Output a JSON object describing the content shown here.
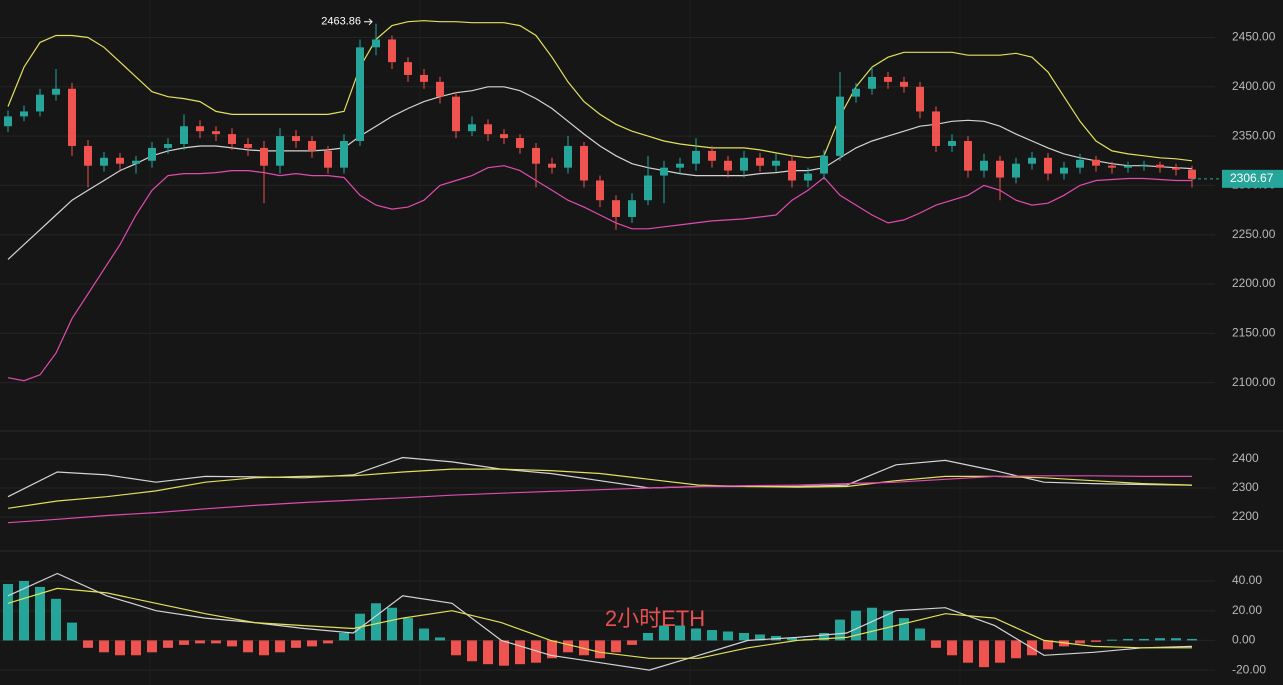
{
  "chart_data": [
    {
      "type": "candlestick",
      "up_color": "#26a69a",
      "down_color": "#ef5350",
      "open": [
        2360,
        2370,
        2375,
        2392,
        2398,
        2340,
        2320,
        2328,
        2322,
        2325,
        2338,
        2342,
        2360,
        2355,
        2352,
        2342,
        2338,
        2320,
        2350,
        2345,
        2335,
        2318,
        2345,
        2440,
        2448,
        2425,
        2412,
        2405,
        2390,
        2355,
        2362,
        2352,
        2348,
        2338,
        2322,
        2318,
        2340,
        2305,
        2285,
        2268,
        2285,
        2310,
        2318,
        2322,
        2335,
        2325,
        2315,
        2328,
        2320,
        2325,
        2305,
        2312,
        2330,
        2390,
        2398,
        2410,
        2405,
        2400,
        2375,
        2340,
        2345,
        2315,
        2325,
        2308,
        2322,
        2328,
        2312,
        2318,
        2326,
        2320,
        2318,
        2320,
        2321,
        2318,
        2316
      ],
      "high": [
        2376,
        2381,
        2398,
        2418,
        2404,
        2346,
        2334,
        2333,
        2330,
        2344,
        2348,
        2372,
        2366,
        2360,
        2358,
        2348,
        2345,
        2358,
        2356,
        2350,
        2340,
        2352,
        2448,
        2463.86,
        2452,
        2430,
        2418,
        2410,
        2395,
        2370,
        2367,
        2357,
        2352,
        2343,
        2328,
        2350,
        2344,
        2310,
        2290,
        2292,
        2330,
        2325,
        2328,
        2348,
        2340,
        2330,
        2335,
        2333,
        2332,
        2330,
        2318,
        2336,
        2415,
        2404,
        2420,
        2415,
        2410,
        2405,
        2380,
        2352,
        2350,
        2332,
        2330,
        2328,
        2334,
        2333,
        2324,
        2332,
        2330,
        2324,
        2324,
        2325,
        2324,
        2322,
        2320
      ],
      "low": [
        2354,
        2365,
        2370,
        2386,
        2330,
        2298,
        2314,
        2316,
        2312,
        2318,
        2332,
        2336,
        2348,
        2345,
        2336,
        2330,
        2282,
        2312,
        2338,
        2328,
        2312,
        2312,
        2340,
        2432,
        2418,
        2405,
        2398,
        2383,
        2348,
        2350,
        2345,
        2342,
        2332,
        2298,
        2312,
        2312,
        2298,
        2278,
        2255,
        2262,
        2280,
        2282,
        2312,
        2315,
        2318,
        2308,
        2308,
        2314,
        2314,
        2298,
        2298,
        2306,
        2325,
        2384,
        2392,
        2398,
        2394,
        2368,
        2334,
        2334,
        2308,
        2308,
        2285,
        2302,
        2316,
        2305,
        2306,
        2312,
        2314,
        2312,
        2313,
        2315,
        2313,
        2310,
        2298
      ],
      "close": [
        2370,
        2375,
        2392,
        2398,
        2340,
        2320,
        2328,
        2322,
        2325,
        2338,
        2342,
        2360,
        2355,
        2352,
        2342,
        2338,
        2320,
        2350,
        2345,
        2335,
        2318,
        2345,
        2440,
        2448,
        2425,
        2412,
        2405,
        2390,
        2355,
        2362,
        2352,
        2348,
        2338,
        2322,
        2318,
        2340,
        2305,
        2285,
        2268,
        2285,
        2310,
        2318,
        2322,
        2335,
        2325,
        2315,
        2328,
        2320,
        2325,
        2305,
        2312,
        2330,
        2390,
        2398,
        2410,
        2405,
        2400,
        2375,
        2340,
        2345,
        2315,
        2325,
        2308,
        2322,
        2328,
        2312,
        2318,
        2326,
        2320,
        2318,
        2320,
        2321,
        2318,
        2316,
        2306.67
      ],
      "series": [
        {
          "color": "#e3e05a",
          "values": [
            2380,
            2420,
            2445,
            2452,
            2452,
            2450,
            2440,
            2425,
            2410,
            2395,
            2390,
            2388,
            2385,
            2375,
            2372,
            2372,
            2372,
            2372,
            2372,
            2372,
            2372,
            2375,
            2420,
            2448,
            2462,
            2466,
            2467,
            2466,
            2466,
            2465,
            2465,
            2465,
            2462,
            2452,
            2430,
            2405,
            2385,
            2372,
            2362,
            2355,
            2350,
            2345,
            2342,
            2340,
            2338,
            2338,
            2338,
            2336,
            2333,
            2330,
            2328,
            2330,
            2370,
            2400,
            2420,
            2430,
            2435,
            2435,
            2435,
            2435,
            2432,
            2432,
            2432,
            2434,
            2430,
            2415,
            2390,
            2365,
            2345,
            2335,
            2332,
            2330,
            2328,
            2327,
            2325
          ]
        },
        {
          "color": "#d4d4d4",
          "values": [
            2225,
            2240,
            2255,
            2270,
            2285,
            2295,
            2305,
            2315,
            2322,
            2330,
            2335,
            2338,
            2340,
            2340,
            2338,
            2336,
            2335,
            2335,
            2335,
            2335,
            2336,
            2338,
            2350,
            2360,
            2370,
            2378,
            2385,
            2390,
            2394,
            2396,
            2400,
            2400,
            2396,
            2388,
            2378,
            2365,
            2352,
            2340,
            2330,
            2322,
            2318,
            2315,
            2312,
            2310,
            2310,
            2310,
            2310,
            2312,
            2313,
            2315,
            2315,
            2318,
            2328,
            2338,
            2345,
            2350,
            2355,
            2360,
            2362,
            2365,
            2366,
            2365,
            2360,
            2352,
            2345,
            2338,
            2332,
            2328,
            2325,
            2322,
            2320,
            2320,
            2319,
            2318,
            2317
          ]
        },
        {
          "color": "#e04bb0",
          "values": [
            2105,
            2102,
            2108,
            2130,
            2165,
            2190,
            2215,
            2240,
            2270,
            2295,
            2310,
            2312,
            2312,
            2313,
            2315,
            2315,
            2313,
            2310,
            2312,
            2310,
            2310,
            2308,
            2290,
            2280,
            2276,
            2278,
            2285,
            2300,
            2305,
            2310,
            2318,
            2320,
            2315,
            2305,
            2295,
            2285,
            2278,
            2270,
            2262,
            2256,
            2256,
            2258,
            2260,
            2262,
            2264,
            2265,
            2266,
            2268,
            2270,
            2285,
            2295,
            2308,
            2290,
            2280,
            2270,
            2262,
            2265,
            2272,
            2280,
            2285,
            2290,
            2300,
            2295,
            2285,
            2280,
            2282,
            2290,
            2300,
            2305,
            2306,
            2307,
            2307,
            2306,
            2305,
            2305
          ]
        }
      ],
      "ylim": [
        2052,
        2488
      ],
      "yticks": [
        {
          "value": 2450,
          "label": "2450.00"
        },
        {
          "value": 2400,
          "label": "2400.00"
        },
        {
          "value": 2350,
          "label": "2350.00"
        },
        {
          "value": 2300,
          "label": "2300.00"
        },
        {
          "value": 2250,
          "label": "2250.00"
        },
        {
          "value": 2200,
          "label": "2200.00"
        },
        {
          "value": 2150,
          "label": "2150.00"
        },
        {
          "value": 2100,
          "label": "2100.00"
        }
      ],
      "grid": true
    },
    {
      "type": "line",
      "series": [
        {
          "color": "#d4d4d4",
          "values": [
            2270,
            2355,
            2345,
            2320,
            2340,
            2338,
            2335,
            2345,
            2405,
            2390,
            2365,
            2350,
            2325,
            2300,
            2305,
            2305,
            2305,
            2310,
            2380,
            2395,
            2360,
            2320,
            2315,
            2312,
            2310
          ]
        },
        {
          "color": "#e3e05a",
          "values": [
            2230,
            2255,
            2270,
            2290,
            2320,
            2335,
            2340,
            2342,
            2355,
            2365,
            2365,
            2360,
            2350,
            2330,
            2310,
            2305,
            2303,
            2305,
            2325,
            2340,
            2340,
            2335,
            2325,
            2315,
            2310
          ]
        },
        {
          "color": "#e04bb0",
          "values": [
            2180,
            2192,
            2205,
            2215,
            2228,
            2240,
            2250,
            2258,
            2266,
            2275,
            2282,
            2288,
            2294,
            2300,
            2305,
            2308,
            2310,
            2315,
            2320,
            2330,
            2340,
            2342,
            2342,
            2340,
            2340
          ]
        }
      ],
      "ylim": [
        2086,
        2493
      ],
      "yticks": [
        2400,
        2300,
        2200
      ],
      "grid": true
    },
    {
      "type": "macd",
      "up_color": "#26a69a",
      "down_color": "#ef5350",
      "values": [
        38,
        40,
        36,
        28,
        12,
        -5,
        -8,
        -10,
        -10,
        -8,
        -5,
        -3,
        -2,
        -2,
        -4,
        -8,
        -10,
        -8,
        -5,
        -4,
        -2,
        5,
        18,
        25,
        22,
        15,
        8,
        2,
        -10,
        -14,
        -16,
        -17,
        -16,
        -15,
        -12,
        -8,
        -10,
        -12,
        -8,
        -3,
        5,
        10,
        10,
        8,
        7,
        6,
        5,
        4,
        3,
        2,
        1,
        5,
        14,
        20,
        22,
        20,
        15,
        8,
        -5,
        -10,
        -15,
        -18,
        -15,
        -12,
        -10,
        -6,
        -4,
        -2,
        -1,
        0.5,
        1,
        1,
        1.5,
        1.5,
        1
      ],
      "series": [
        {
          "color": "#d4d4d4",
          "values": [
            30,
            45,
            30,
            20,
            15,
            12,
            8,
            5,
            30,
            25,
            0,
            -10,
            -15,
            -20,
            -10,
            0,
            2,
            5,
            20,
            22,
            10,
            -10,
            -8,
            -5,
            -4
          ]
        },
        {
          "color": "#e3e05a",
          "values": [
            25,
            35,
            32,
            25,
            18,
            12,
            10,
            8,
            15,
            20,
            12,
            0,
            -8,
            -12,
            -12,
            -5,
            0,
            2,
            10,
            18,
            15,
            0,
            -4,
            -5,
            -5
          ]
        }
      ],
      "ylim": [
        -30,
        59.5
      ],
      "yticks": [
        {
          "value": 40,
          "label": "40.00"
        },
        {
          "value": 20,
          "label": "20.00"
        },
        {
          "value": 0,
          "label": "0.00"
        },
        {
          "value": -20,
          "label": "-20.00"
        }
      ],
      "grid": true
    }
  ],
  "watermark": "2小时ETH"
}
